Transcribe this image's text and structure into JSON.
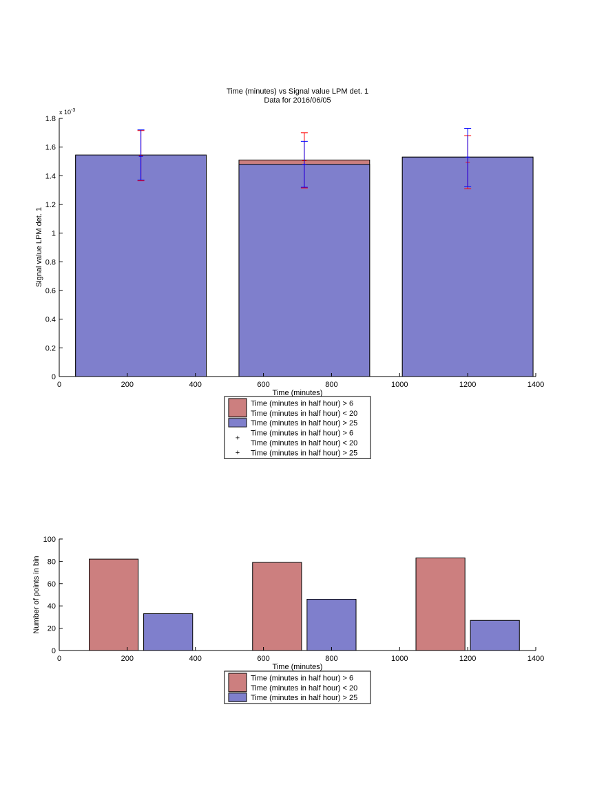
{
  "figure": {
    "background": "#ffffff"
  },
  "chart_data": [
    {
      "type": "bar",
      "title": "Time (minutes) vs Signal value LPM det. 1",
      "subtitle": "Data for 2016/06/05",
      "xlabel": "Time (minutes)",
      "ylabel": "Signal value LPM det. 1",
      "y_exponent_label": "x 10",
      "y_exponent_power": "-3",
      "xlim": [
        0,
        1400
      ],
      "ylim": [
        0,
        1.8
      ],
      "xticks": [
        "0",
        "200",
        "400",
        "600",
        "800",
        "1000",
        "1200",
        "1400"
      ],
      "yticks": [
        "0",
        "0.2",
        "0.4",
        "0.6",
        "0.8",
        "1",
        "1.2",
        "1.4",
        "1.6",
        "1.8"
      ],
      "grid": false,
      "bar_mode": "overlay",
      "categories": [
        240,
        720,
        1200
      ],
      "series": [
        {
          "name": "Time (minutes in half hour) > 6\nTime (minutes in half hour) < 20",
          "color": "#cc7f7f",
          "values": [
            1.54,
            1.51,
            1.53
          ]
        },
        {
          "name": "Time (minutes in half hour) > 25",
          "color": "#7f7fcc",
          "values": [
            1.545,
            1.48,
            1.53
          ]
        }
      ],
      "error_series": [
        {
          "name": "Time (minutes in half hour) > 6\nTime (minutes in half hour) < 20",
          "color": "#ff0000",
          "points": [
            {
              "x": 240,
              "y": 1.54,
              "low": 1.365,
              "high": 1.715
            },
            {
              "x": 720,
              "y": 1.505,
              "low": 1.315,
              "high": 1.7
            },
            {
              "x": 1200,
              "y": 1.495,
              "low": 1.31,
              "high": 1.68
            }
          ]
        },
        {
          "name": "Time (minutes in half hour) > 25",
          "color": "#0000ff",
          "points": [
            {
              "x": 240,
              "y": 1.535,
              "low": 1.37,
              "high": 1.72
            },
            {
              "x": 720,
              "y": 1.48,
              "low": 1.32,
              "high": 1.64
            },
            {
              "x": 1200,
              "y": 1.53,
              "low": 1.325,
              "high": 1.73
            }
          ]
        }
      ],
      "legend": {
        "placement": "below",
        "entries": [
          {
            "kind": "patch",
            "color": "#cc7f7f",
            "lines": [
              "Time (minutes in half hour) > 6",
              "Time (minutes in half hour) < 20"
            ]
          },
          {
            "kind": "patch",
            "color": "#7f7fcc",
            "lines": [
              "Time (minutes in half hour) > 25"
            ]
          },
          {
            "kind": "marker",
            "color": "#ff0000",
            "marker": "+",
            "lines": [
              "Time (minutes in half hour) > 6",
              "Time (minutes in half hour) < 20"
            ]
          },
          {
            "kind": "marker",
            "color": "#0000ff",
            "marker": "+",
            "lines": [
              "Time (minutes in half hour) > 25"
            ]
          }
        ]
      }
    },
    {
      "type": "bar",
      "title": "",
      "xlabel": "Time (minutes)",
      "ylabel": "Number of points in bin",
      "xlim": [
        0,
        1400
      ],
      "ylim": [
        0,
        100
      ],
      "xticks": [
        "0",
        "200",
        "400",
        "600",
        "800",
        "1000",
        "1200",
        "1400"
      ],
      "yticks": [
        "0",
        "20",
        "40",
        "60",
        "80",
        "100"
      ],
      "grid": false,
      "bar_mode": "grouped",
      "categories": [
        240,
        720,
        1200
      ],
      "series": [
        {
          "name": "Time (minutes in half hour) > 6\nTime (minutes in half hour) < 20",
          "color": "#cc7f7f",
          "values": [
            82,
            79,
            83
          ]
        },
        {
          "name": "Time (minutes in half hour) > 25",
          "color": "#7f7fcc",
          "values": [
            33,
            46,
            27
          ]
        }
      ],
      "legend": {
        "placement": "below",
        "entries": [
          {
            "kind": "patch",
            "color": "#cc7f7f",
            "lines": [
              "Time (minutes in half hour) > 6",
              "Time (minutes in half hour) < 20"
            ]
          },
          {
            "kind": "patch",
            "color": "#7f7fcc",
            "lines": [
              "Time (minutes in half hour) > 25"
            ]
          }
        ]
      }
    }
  ]
}
